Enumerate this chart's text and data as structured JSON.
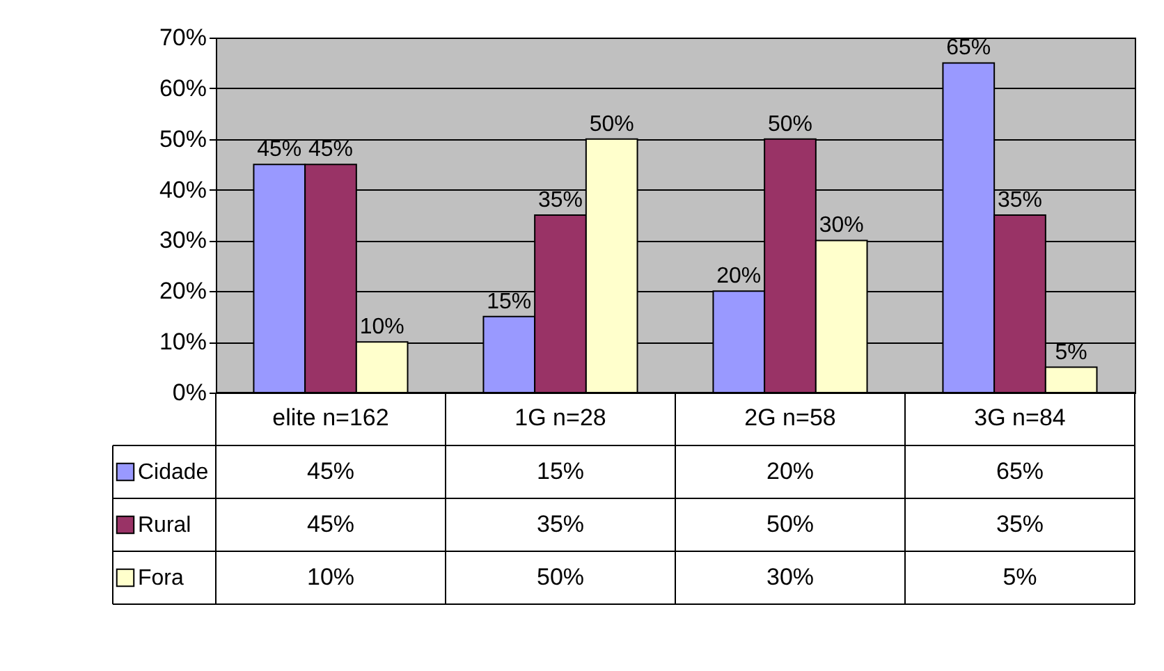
{
  "chart_data": {
    "type": "bar",
    "categories": [
      "elite n=162",
      "1G n=28",
      "2G n=58",
      "3G n=84"
    ],
    "series": [
      {
        "name": "Cidade",
        "color": "#9999ff",
        "values": [
          45,
          15,
          20,
          65
        ],
        "value_labels": [
          "45%",
          "15%",
          "20%",
          "65%"
        ]
      },
      {
        "name": "Rural",
        "color": "#993366",
        "values": [
          45,
          35,
          50,
          35
        ],
        "value_labels": [
          "45%",
          "35%",
          "50%",
          "35%"
        ]
      },
      {
        "name": "Fora",
        "color": "#ffffcc",
        "values": [
          10,
          50,
          30,
          5
        ],
        "value_labels": [
          "10%",
          "50%",
          "30%",
          "5%"
        ]
      }
    ],
    "ylim": [
      0,
      70
    ],
    "yticks": [
      {
        "value": 0,
        "label": "0%"
      },
      {
        "value": 10,
        "label": "10%"
      },
      {
        "value": 20,
        "label": "20%"
      },
      {
        "value": 30,
        "label": "30%"
      },
      {
        "value": 40,
        "label": "40%"
      },
      {
        "value": 50,
        "label": "50%"
      },
      {
        "value": 60,
        "label": "60%"
      },
      {
        "value": 70,
        "label": "70%"
      }
    ],
    "grid": "y",
    "legend": "left"
  }
}
